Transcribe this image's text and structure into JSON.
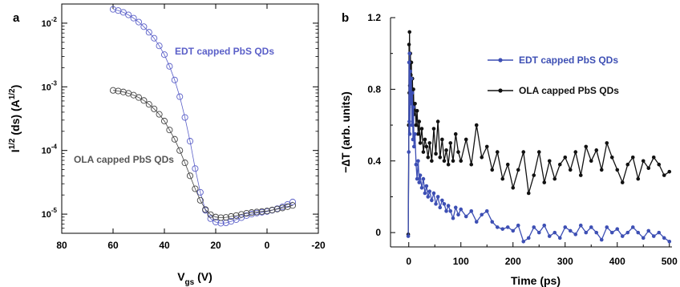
{
  "chart_data": [
    {
      "panel_label": "a",
      "type": "scatter",
      "xlabel": "V",
      "xlabel_sub": "gs",
      "xlabel_unit": " (V)",
      "ylabel_pre": "I",
      "ylabel_sup": "1/2",
      "ylabel_mid": " (ds) (A",
      "ylabel_sup2": "1/2",
      "ylabel_post": ")",
      "xlim": [
        80,
        -20
      ],
      "xticks": [
        80,
        60,
        40,
        20,
        0,
        -20
      ],
      "xtick_labels": [
        "80",
        "60",
        "40",
        "20",
        "0",
        "-20"
      ],
      "yscale": "log",
      "ylim": [
        5e-06,
        0.02
      ],
      "yticks": [
        1e-05,
        0.0001,
        0.001,
        0.01
      ],
      "ytick_base": "10",
      "ytick_exps": [
        "-5",
        "-4",
        "-3",
        "-2"
      ],
      "grid": false,
      "series": [
        {
          "name": "EDT capped PbS QDs",
          "color": "#5a5fc8",
          "marker": "open-circle",
          "line": "thin",
          "x": [
            60,
            58,
            56,
            54,
            52,
            50,
            48,
            46,
            44,
            42,
            40,
            38,
            36,
            34,
            32,
            30,
            28,
            26,
            24,
            22,
            20,
            18,
            16,
            14,
            12,
            10,
            8,
            6,
            4,
            2,
            0,
            -2,
            -4,
            -6,
            -8,
            -10
          ],
          "y": [
            0.0165,
            0.0158,
            0.0148,
            0.0135,
            0.012,
            0.0104,
            0.0088,
            0.0072,
            0.0058,
            0.0044,
            0.0032,
            0.0021,
            0.00128,
            0.0007,
            0.00033,
            0.00014,
            5.2e-05,
            2.2e-05,
            1.15e-05,
            8.5e-06,
            7.5e-06,
            7.2e-06,
            7.3e-06,
            7.7e-06,
            8.2e-06,
            8.8e-06,
            9.5e-06,
            1e-05,
            1.04e-05,
            1.07e-05,
            1.1e-05,
            1.15e-05,
            1.22e-05,
            1.3e-05,
            1.42e-05,
            1.55e-05
          ]
        },
        {
          "name": "OLA capped PbS QDs",
          "color": "#444444",
          "marker": "open-circle",
          "line": "thin",
          "x": [
            60,
            58,
            56,
            54,
            52,
            50,
            48,
            46,
            44,
            42,
            40,
            38,
            36,
            34,
            32,
            30,
            28,
            26,
            24,
            22,
            20,
            18,
            16,
            14,
            12,
            10,
            8,
            6,
            4,
            2,
            0,
            -2,
            -4,
            -6,
            -8,
            -10
          ],
          "y": [
            0.00088,
            0.00086,
            0.00083,
            0.00079,
            0.00074,
            0.00068,
            0.00061,
            0.00053,
            0.00045,
            0.00037,
            0.00029,
            0.00021,
            0.00015,
            0.0001,
            6.4e-05,
            4e-05,
            2.5e-05,
            1.65e-05,
            1.18e-05,
            9.8e-06,
            9e-06,
            8.8e-06,
            8.9e-06,
            9.2e-06,
            9.5e-06,
            9.9e-06,
            1.03e-05,
            1.06e-05,
            1.08e-05,
            1.1e-05,
            1.12e-05,
            1.16e-05,
            1.2e-05,
            1.25e-05,
            1.31e-05,
            1.37e-05
          ]
        }
      ]
    },
    {
      "panel_label": "b",
      "type": "line",
      "xlabel": "Time (ps)",
      "ylabel_pre": "−∆T (arb. units)",
      "xlim": [
        -35,
        505
      ],
      "xticks": [
        0,
        100,
        200,
        300,
        400,
        500
      ],
      "xtick_labels": [
        "0",
        "100",
        "200",
        "300",
        "400",
        "500"
      ],
      "ylim": [
        -0.08,
        1.2
      ],
      "yticks": [
        0,
        0.4,
        0.8,
        1.2
      ],
      "ytick_labels": [
        "0",
        "0.4",
        "0.8",
        "1.2"
      ],
      "grid": false,
      "legend": "top-right",
      "series": [
        {
          "name": "EDT capped PbS QDs",
          "color": "#3d4fb4",
          "marker": "filled-circle",
          "x": [
            -1,
            0,
            0.5,
            1,
            1.5,
            2,
            3,
            4,
            5,
            6,
            7,
            8,
            9,
            10,
            12,
            14,
            16,
            18,
            20,
            22,
            25,
            28,
            31,
            34,
            37,
            40,
            44,
            48,
            52,
            56,
            60,
            64,
            68,
            72,
            76,
            80,
            85,
            90,
            95,
            100,
            110,
            120,
            130,
            140,
            150,
            160,
            170,
            180,
            190,
            200,
            210,
            220,
            230,
            240,
            250,
            260,
            270,
            280,
            290,
            300,
            310,
            320,
            330,
            340,
            350,
            360,
            370,
            380,
            390,
            400,
            410,
            420,
            430,
            440,
            450,
            460,
            470,
            480,
            490,
            500
          ],
          "y": [
            -0.02,
            0.45,
            0.95,
            0.62,
            1.0,
            0.55,
            0.9,
            0.72,
            0.86,
            0.6,
            0.78,
            0.52,
            0.7,
            0.48,
            0.55,
            0.38,
            0.3,
            0.4,
            0.28,
            0.32,
            0.25,
            0.3,
            0.22,
            0.26,
            0.2,
            0.23,
            0.18,
            0.22,
            0.16,
            0.2,
            0.14,
            0.18,
            0.16,
            0.12,
            0.15,
            0.12,
            0.08,
            0.14,
            0.1,
            0.13,
            0.09,
            0.12,
            0.06,
            0.1,
            0.12,
            0.06,
            0.03,
            0.02,
            0.03,
            0.01,
            0.04,
            -0.05,
            -0.03,
            0.03,
            0.0,
            0.04,
            -0.02,
            0.0,
            -0.03,
            0.03,
            0.01,
            -0.01,
            0.04,
            0.0,
            0.03,
            0.0,
            -0.04,
            0.03,
            0.0,
            0.02,
            -0.02,
            0.0,
            0.03,
            0.0,
            -0.03,
            0.01,
            -0.02,
            0.0,
            -0.03,
            -0.05
          ]
        },
        {
          "name": "OLA capped PbS QDs",
          "color": "#111111",
          "marker": "filled-circle",
          "x": [
            -1,
            0,
            0.5,
            1,
            1.5,
            2,
            3,
            4,
            5,
            6,
            7,
            8,
            9,
            10,
            12,
            14,
            16,
            18,
            20,
            22,
            25,
            28,
            31,
            34,
            37,
            40,
            44,
            48,
            52,
            56,
            60,
            64,
            68,
            72,
            76,
            80,
            85,
            90,
            95,
            100,
            110,
            120,
            130,
            140,
            150,
            160,
            170,
            180,
            190,
            200,
            210,
            220,
            230,
            240,
            250,
            260,
            270,
            280,
            290,
            300,
            310,
            320,
            330,
            340,
            350,
            360,
            370,
            380,
            390,
            400,
            410,
            420,
            430,
            440,
            450,
            460,
            470,
            480,
            490,
            500
          ],
          "y": [
            -0.01,
            0.6,
            1.05,
            0.78,
            1.12,
            0.82,
            1.0,
            0.88,
            0.95,
            0.74,
            0.86,
            0.7,
            0.8,
            0.66,
            0.72,
            0.6,
            0.68,
            0.55,
            0.62,
            0.5,
            0.58,
            0.45,
            0.52,
            0.48,
            0.42,
            0.5,
            0.4,
            0.58,
            0.44,
            0.62,
            0.42,
            0.52,
            0.4,
            0.46,
            0.38,
            0.5,
            0.4,
            0.55,
            0.45,
            0.4,
            0.52,
            0.38,
            0.6,
            0.42,
            0.48,
            0.35,
            0.45,
            0.3,
            0.38,
            0.25,
            0.35,
            0.45,
            0.22,
            0.32,
            0.45,
            0.28,
            0.4,
            0.3,
            0.38,
            0.42,
            0.35,
            0.45,
            0.32,
            0.48,
            0.4,
            0.46,
            0.35,
            0.5,
            0.42,
            0.35,
            0.28,
            0.38,
            0.42,
            0.3,
            0.4,
            0.36,
            0.42,
            0.38,
            0.32,
            0.34
          ]
        }
      ]
    }
  ]
}
